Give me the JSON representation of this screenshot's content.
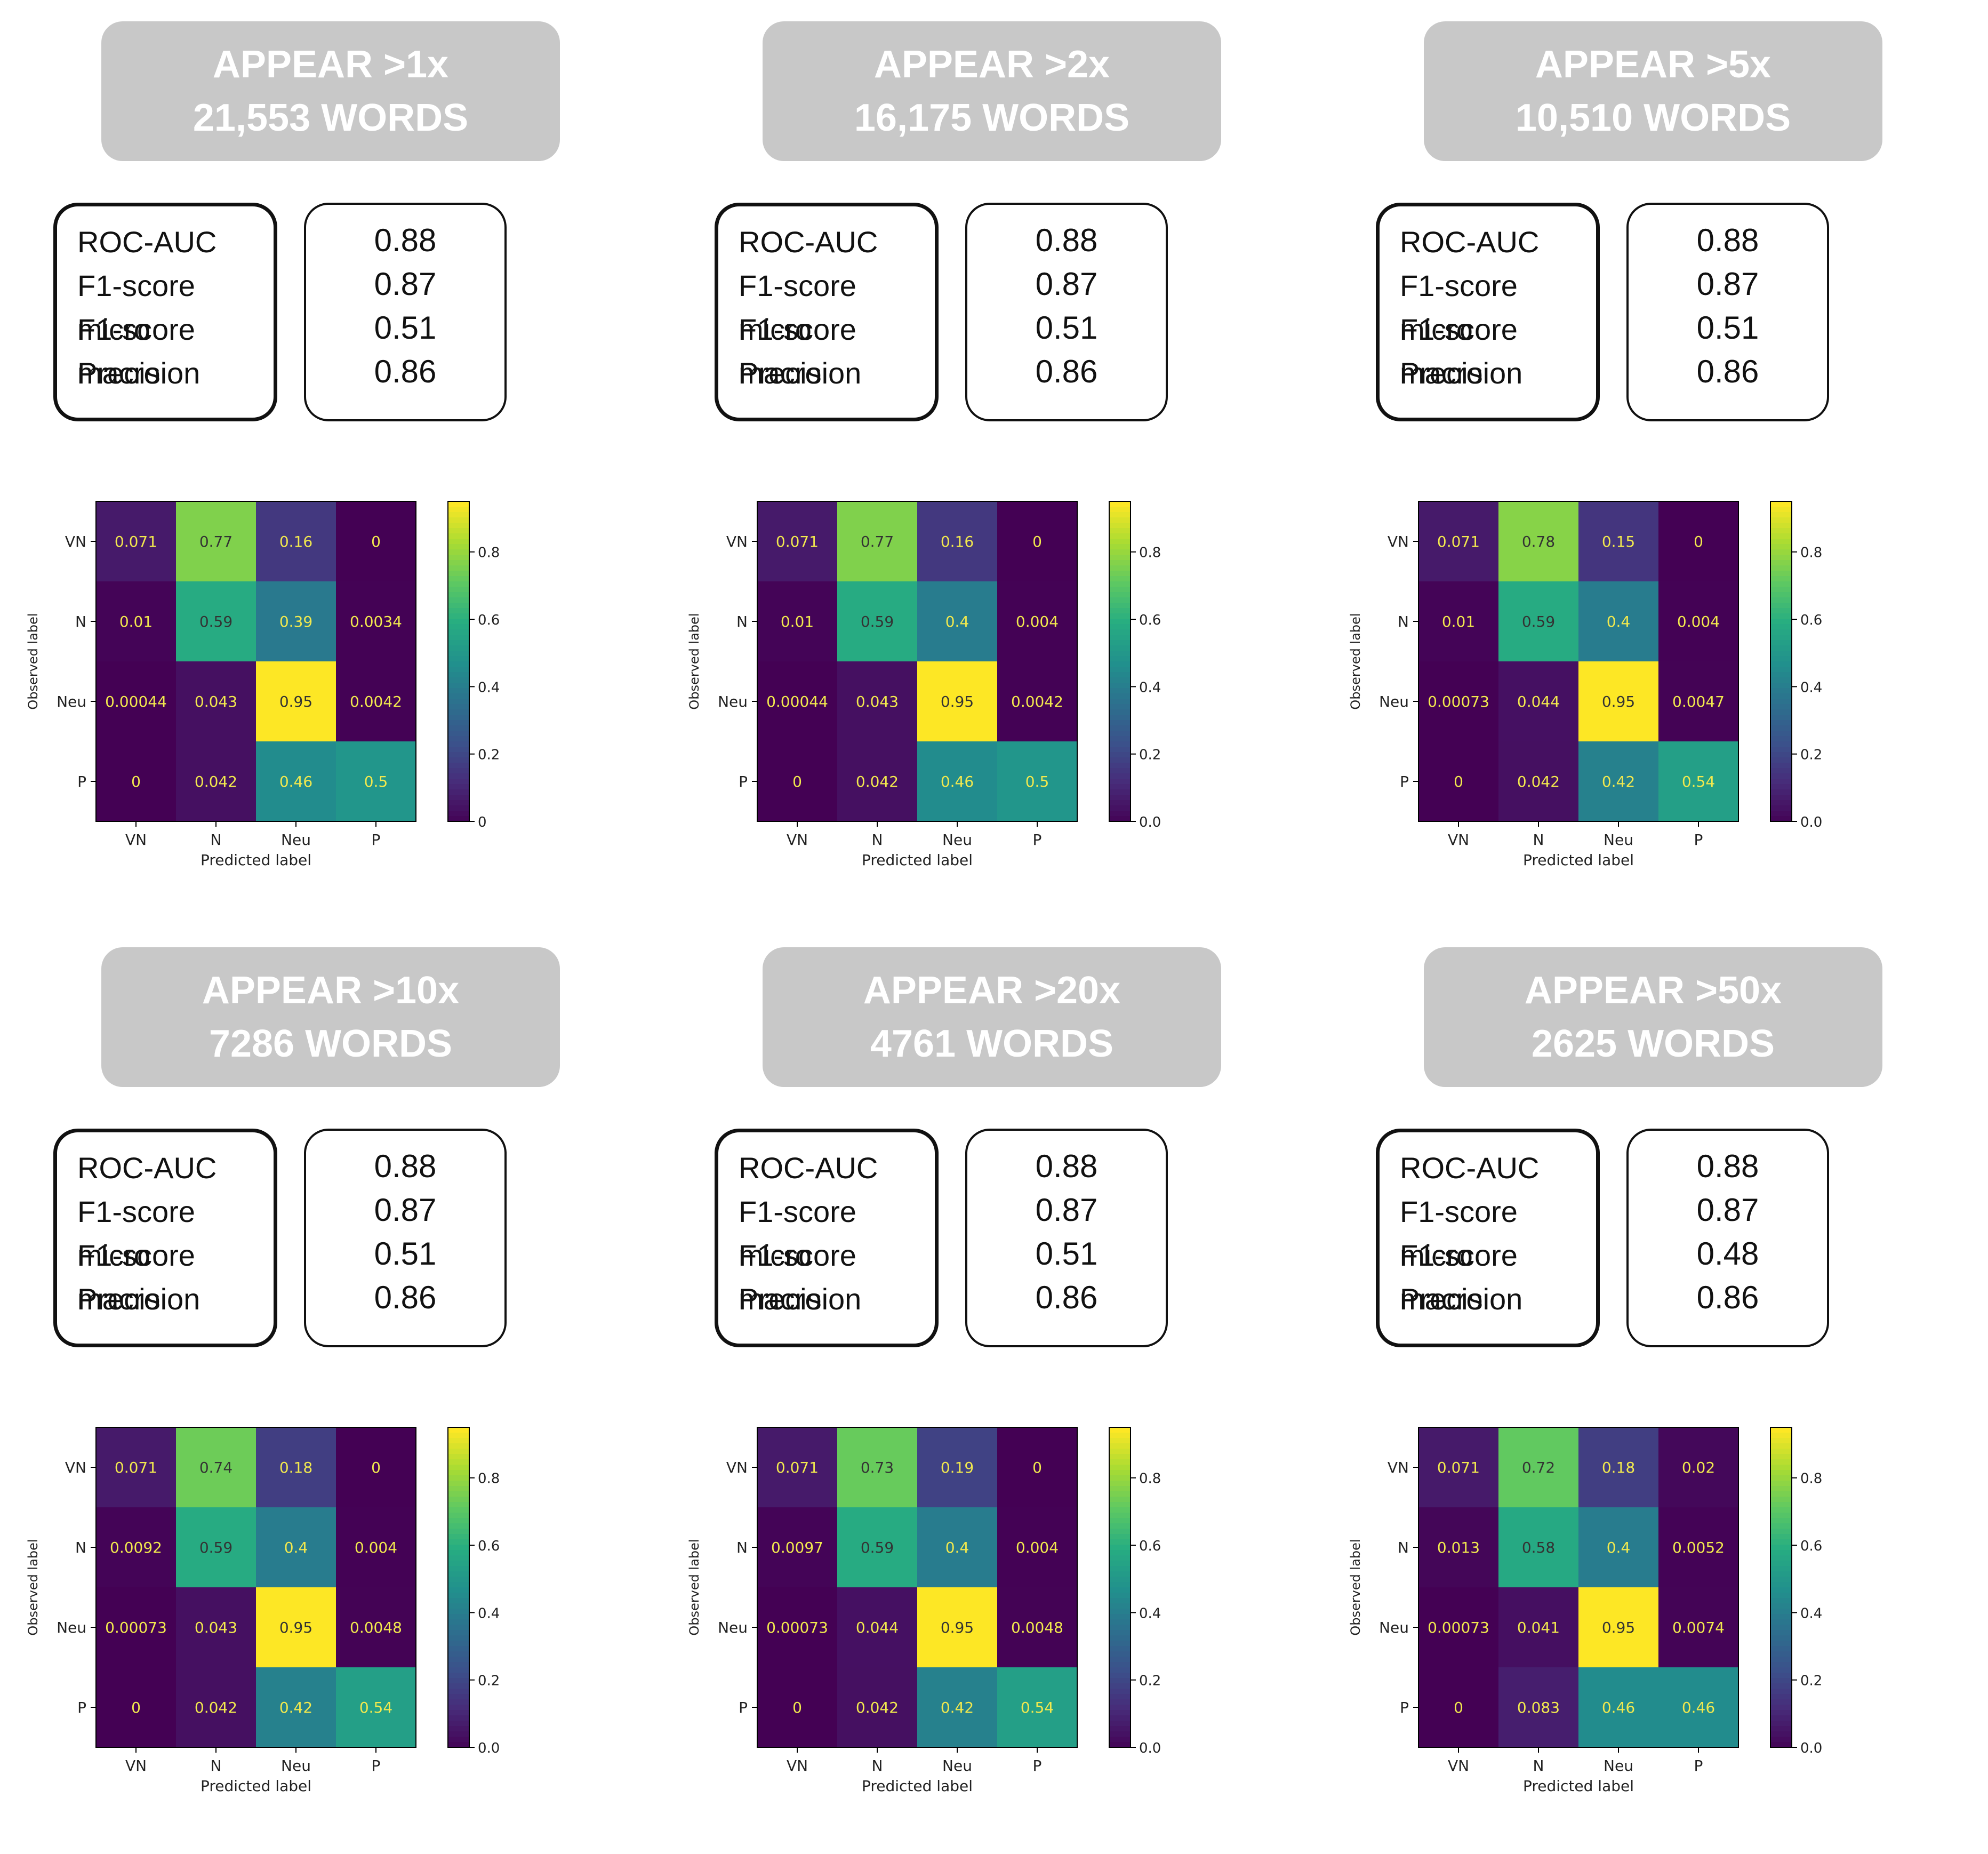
{
  "colors": {
    "header_bg": "#c8c8c8",
    "header_text": "#ffffff"
  },
  "chart_data": [
    {
      "type": "heatmap",
      "header_line1": "APPEAR >1x",
      "header_line2": "21,553 WORDS",
      "metrics": {
        "labels": [
          "ROC-AUC",
          "F1-score micro",
          "F1-score macro",
          "Precision"
        ],
        "values": [
          "0.88",
          "0.87",
          "0.51",
          "0.86"
        ]
      },
      "xlabel": "Predicted label",
      "ylabel": "Observed label",
      "categories": [
        "VN",
        "N",
        "Neu",
        "P"
      ],
      "values": [
        [
          0.071,
          0.77,
          0.16,
          0
        ],
        [
          0.01,
          0.59,
          0.39,
          0.0034
        ],
        [
          0.00044,
          0.043,
          0.95,
          0.0042
        ],
        [
          0,
          0.042,
          0.46,
          0.5
        ]
      ],
      "cell_labels": [
        [
          "0.071",
          "0.77",
          "0.16",
          "0"
        ],
        [
          "0.01",
          "0.59",
          "0.39",
          "0.0034"
        ],
        [
          "0.00044",
          "0.043",
          "0.95",
          "0.0042"
        ],
        [
          "0",
          "0.042",
          "0.46",
          "0.5"
        ]
      ],
      "colorbar_ticks": [
        "0",
        "0.2",
        "0.4",
        "0.6",
        "0.8"
      ],
      "colorbar_range": [
        0,
        0.95
      ]
    },
    {
      "type": "heatmap",
      "header_line1": "APPEAR >2x",
      "header_line2": "16,175 WORDS",
      "metrics": {
        "labels": [
          "ROC-AUC",
          "F1-score micro",
          "F1-score macro",
          "Precision"
        ],
        "values": [
          "0.88",
          "0.87",
          "0.51",
          "0.86"
        ]
      },
      "xlabel": "Predicted label",
      "ylabel": "Observed label",
      "categories": [
        "VN",
        "N",
        "Neu",
        "P"
      ],
      "values": [
        [
          0.071,
          0.77,
          0.16,
          0
        ],
        [
          0.01,
          0.59,
          0.4,
          0.004
        ],
        [
          0.00044,
          0.043,
          0.95,
          0.0042
        ],
        [
          0,
          0.042,
          0.46,
          0.5
        ]
      ],
      "cell_labels": [
        [
          "0.071",
          "0.77",
          "0.16",
          "0"
        ],
        [
          "0.01",
          "0.59",
          "0.4",
          "0.004"
        ],
        [
          "0.00044",
          "0.043",
          "0.95",
          "0.0042"
        ],
        [
          "0",
          "0.042",
          "0.46",
          "0.5"
        ]
      ],
      "colorbar_ticks": [
        "0.0",
        "0.2",
        "0.4",
        "0.6",
        "0.8"
      ],
      "colorbar_range": [
        0,
        0.95
      ]
    },
    {
      "type": "heatmap",
      "header_line1": "APPEAR >5x",
      "header_line2": "10,510 WORDS",
      "metrics": {
        "labels": [
          "ROC-AUC",
          "F1-score micro",
          "F1-score macro",
          "Precision"
        ],
        "values": [
          "0.88",
          "0.87",
          "0.51",
          "0.86"
        ]
      },
      "xlabel": "Predicted label",
      "ylabel": "Observed label",
      "categories": [
        "VN",
        "N",
        "Neu",
        "P"
      ],
      "values": [
        [
          0.071,
          0.78,
          0.15,
          0
        ],
        [
          0.01,
          0.59,
          0.4,
          0.004
        ],
        [
          0.00073,
          0.044,
          0.95,
          0.0047
        ],
        [
          0,
          0.042,
          0.42,
          0.54
        ]
      ],
      "cell_labels": [
        [
          "0.071",
          "0.78",
          "0.15",
          "0"
        ],
        [
          "0.01",
          "0.59",
          "0.4",
          "0.004"
        ],
        [
          "0.00073",
          "0.044",
          "0.95",
          "0.0047"
        ],
        [
          "0",
          "0.042",
          "0.42",
          "0.54"
        ]
      ],
      "colorbar_ticks": [
        "0.0",
        "0.2",
        "0.4",
        "0.6",
        "0.8"
      ],
      "colorbar_range": [
        0,
        0.95
      ]
    },
    {
      "type": "heatmap",
      "header_line1": "APPEAR >10x",
      "header_line2": "7286 WORDS",
      "metrics": {
        "labels": [
          "ROC-AUC",
          "F1-score micro",
          "F1-score macro",
          "Precision"
        ],
        "values": [
          "0.88",
          "0.87",
          "0.51",
          "0.86"
        ]
      },
      "xlabel": "Predicted label",
      "ylabel": "Observed label",
      "categories": [
        "VN",
        "N",
        "Neu",
        "P"
      ],
      "values": [
        [
          0.071,
          0.74,
          0.18,
          0
        ],
        [
          0.0092,
          0.59,
          0.4,
          0.004
        ],
        [
          0.00073,
          0.043,
          0.95,
          0.0048
        ],
        [
          0,
          0.042,
          0.42,
          0.54
        ]
      ],
      "cell_labels": [
        [
          "0.071",
          "0.74",
          "0.18",
          "0"
        ],
        [
          "0.0092",
          "0.59",
          "0.4",
          "0.004"
        ],
        [
          "0.00073",
          "0.043",
          "0.95",
          "0.0048"
        ],
        [
          "0",
          "0.042",
          "0.42",
          "0.54"
        ]
      ],
      "colorbar_ticks": [
        "0.0",
        "0.2",
        "0.4",
        "0.6",
        "0.8"
      ],
      "colorbar_range": [
        0,
        0.95
      ]
    },
    {
      "type": "heatmap",
      "header_line1": "APPEAR >20x",
      "header_line2": "4761 WORDS",
      "metrics": {
        "labels": [
          "ROC-AUC",
          "F1-score micro",
          "F1-score macro",
          "Precision"
        ],
        "values": [
          "0.88",
          "0.87",
          "0.51",
          "0.86"
        ]
      },
      "xlabel": "Predicted label",
      "ylabel": "Observed label",
      "categories": [
        "VN",
        "N",
        "Neu",
        "P"
      ],
      "values": [
        [
          0.071,
          0.73,
          0.19,
          0
        ],
        [
          0.0097,
          0.59,
          0.4,
          0.004
        ],
        [
          0.00073,
          0.044,
          0.95,
          0.0048
        ],
        [
          0,
          0.042,
          0.42,
          0.54
        ]
      ],
      "cell_labels": [
        [
          "0.071",
          "0.73",
          "0.19",
          "0"
        ],
        [
          "0.0097",
          "0.59",
          "0.4",
          "0.004"
        ],
        [
          "0.00073",
          "0.044",
          "0.95",
          "0.0048"
        ],
        [
          "0",
          "0.042",
          "0.42",
          "0.54"
        ]
      ],
      "colorbar_ticks": [
        "0.0",
        "0.2",
        "0.4",
        "0.6",
        "0.8"
      ],
      "colorbar_range": [
        0,
        0.95
      ]
    },
    {
      "type": "heatmap",
      "header_line1": "APPEAR >50x",
      "header_line2": "2625 WORDS",
      "metrics": {
        "labels": [
          "ROC-AUC",
          "F1-score micro",
          "F1-score macro",
          "Precision"
        ],
        "values": [
          "0.88",
          "0.87",
          "0.48",
          "0.86"
        ]
      },
      "xlabel": "Predicted label",
      "ylabel": "Observed label",
      "categories": [
        "VN",
        "N",
        "Neu",
        "P"
      ],
      "values": [
        [
          0.071,
          0.72,
          0.18,
          0.02
        ],
        [
          0.013,
          0.58,
          0.4,
          0.0052
        ],
        [
          0.00073,
          0.041,
          0.95,
          0.0074
        ],
        [
          0,
          0.083,
          0.46,
          0.46
        ]
      ],
      "cell_labels": [
        [
          "0.071",
          "0.72",
          "0.18",
          "0.02"
        ],
        [
          "0.013",
          "0.58",
          "0.4",
          "0.0052"
        ],
        [
          "0.00073",
          "0.041",
          "0.95",
          "0.0074"
        ],
        [
          "0",
          "0.083",
          "0.46",
          "0.46"
        ]
      ],
      "colorbar_ticks": [
        "0.0",
        "0.2",
        "0.4",
        "0.6",
        "0.8"
      ],
      "colorbar_range": [
        0,
        0.95
      ]
    }
  ]
}
